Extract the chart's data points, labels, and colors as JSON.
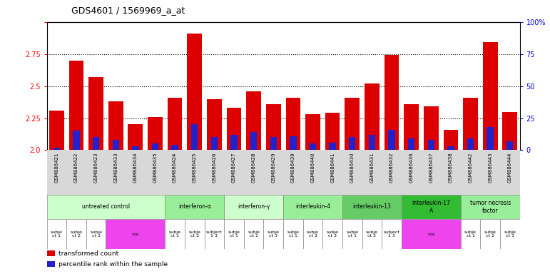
{
  "title": "GDS4601 / 1569969_a_at",
  "samples": [
    "GSM886421",
    "GSM886422",
    "GSM886423",
    "GSM886433",
    "GSM886434",
    "GSM886435",
    "GSM886424",
    "GSM886425",
    "GSM886426",
    "GSM886427",
    "GSM886428",
    "GSM886429",
    "GSM886439",
    "GSM886440",
    "GSM886441",
    "GSM886430",
    "GSM886431",
    "GSM886432",
    "GSM886436",
    "GSM886437",
    "GSM886438",
    "GSM886442",
    "GSM886443",
    "GSM886444"
  ],
  "transformed_count": [
    2.31,
    2.7,
    2.57,
    2.38,
    2.2,
    2.26,
    2.41,
    2.91,
    2.4,
    2.33,
    2.46,
    2.36,
    2.41,
    2.28,
    2.29,
    2.41,
    2.52,
    2.74,
    2.36,
    2.34,
    2.16,
    2.41,
    2.84,
    2.3
  ],
  "percentile_rank": [
    2,
    15,
    10,
    8,
    3,
    5,
    4,
    20,
    10,
    12,
    14,
    10,
    11,
    5,
    6,
    10,
    12,
    16,
    9,
    8,
    3,
    9,
    18,
    7
  ],
  "ylim_left": [
    2.0,
    3.0
  ],
  "ylim_right": [
    0,
    100
  ],
  "yticks_left": [
    2.0,
    2.25,
    2.5,
    2.75,
    3.0
  ],
  "yticks_right": [
    0,
    25,
    50,
    75,
    100
  ],
  "bar_color": "#dd0000",
  "percentile_color": "#2222cc",
  "background_color": "#ffffff",
  "agents": [
    {
      "label": "untreated control",
      "start": 0,
      "end": 5,
      "color": "#ccffcc"
    },
    {
      "label": "interferon-α",
      "start": 6,
      "end": 8,
      "color": "#99ee99"
    },
    {
      "label": "interferon-γ",
      "start": 9,
      "end": 11,
      "color": "#ccffcc"
    },
    {
      "label": "interleukin-4",
      "start": 12,
      "end": 14,
      "color": "#99ee99"
    },
    {
      "label": "interleukin-13",
      "start": 15,
      "end": 17,
      "color": "#66cc66"
    },
    {
      "label": "interleukin-17\nA",
      "start": 18,
      "end": 20,
      "color": "#33bb33"
    },
    {
      "label": "tumor necrosis\nfactor",
      "start": 21,
      "end": 23,
      "color": "#99ee99"
    }
  ],
  "individuals": [
    {
      "label": "subje\nct 1",
      "start": 0,
      "end": 0,
      "color": "#ffffff"
    },
    {
      "label": "subje\nct 2",
      "start": 1,
      "end": 1,
      "color": "#ffffff"
    },
    {
      "label": "subje\nct 3",
      "start": 2,
      "end": 2,
      "color": "#ffffff"
    },
    {
      "label": "n/a",
      "start": 3,
      "end": 5,
      "color": "#ee44ee"
    },
    {
      "label": "subje\nct 1",
      "start": 6,
      "end": 6,
      "color": "#ffffff"
    },
    {
      "label": "subje\nct 2",
      "start": 7,
      "end": 7,
      "color": "#ffffff"
    },
    {
      "label": "subject\n1 3",
      "start": 8,
      "end": 8,
      "color": "#ffffff"
    },
    {
      "label": "subje\nct 1",
      "start": 9,
      "end": 9,
      "color": "#ffffff"
    },
    {
      "label": "subje\nct 2",
      "start": 10,
      "end": 10,
      "color": "#ffffff"
    },
    {
      "label": "subje\nct 3",
      "start": 11,
      "end": 11,
      "color": "#ffffff"
    },
    {
      "label": "subje\nct 1",
      "start": 12,
      "end": 12,
      "color": "#ffffff"
    },
    {
      "label": "subje\nct 2",
      "start": 13,
      "end": 13,
      "color": "#ffffff"
    },
    {
      "label": "subje\nct 3",
      "start": 14,
      "end": 14,
      "color": "#ffffff"
    },
    {
      "label": "subje\nct 1",
      "start": 15,
      "end": 15,
      "color": "#ffffff"
    },
    {
      "label": "subje\nct 2",
      "start": 16,
      "end": 16,
      "color": "#ffffff"
    },
    {
      "label": "subject\n1 3",
      "start": 17,
      "end": 17,
      "color": "#ffffff"
    },
    {
      "label": "n/a",
      "start": 18,
      "end": 20,
      "color": "#ee44ee"
    },
    {
      "label": "subje\nct 1",
      "start": 21,
      "end": 21,
      "color": "#ffffff"
    },
    {
      "label": "subje\nct 2",
      "start": 22,
      "end": 22,
      "color": "#ffffff"
    },
    {
      "label": "subje\nct 3",
      "start": 23,
      "end": 23,
      "color": "#ffffff"
    }
  ],
  "legend": [
    {
      "color": "#dd0000",
      "label": "transformed count"
    },
    {
      "color": "#2222cc",
      "label": "percentile rank within the sample"
    }
  ]
}
